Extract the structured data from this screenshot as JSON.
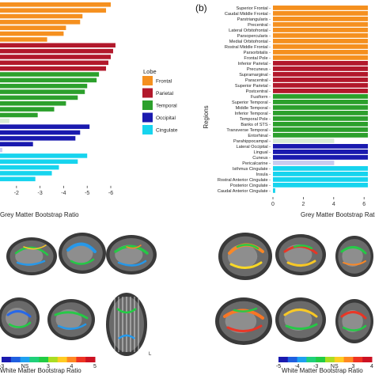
{
  "figure": {
    "panel_b_label": "(b)",
    "left_xaxis_title": "Grey Matter Bootstrap Ratio",
    "right_xaxis_title": "Grey Matter Bootstrap Ratio",
    "right_yaxis_title": "Regions",
    "bottom_left_colorbar_title": "White Matter Bootstrap Ratio",
    "bottom_right_colorbar_title": "White Matter Bootstrap Ratio",
    "orientation_label": "L",
    "bottom_left_colorbar_ticks": [
      "-3",
      "NS",
      "3",
      "4",
      "5"
    ],
    "bottom_right_colorbar_ticks": [
      "-5",
      "-4",
      "-3",
      "NS",
      "3",
      "4"
    ],
    "brain_image_description": "Brain MRI slices with colored overlays (not data-bearing)"
  },
  "colors": {
    "Frontal": "#f5901f",
    "Parietal": "#b2182b",
    "Temporal": "#2ca02c",
    "Occipital": "#1a1aaf",
    "Cingulate": "#17d4ee",
    "Non-significant": "#d9ecd6",
    "Non-significant-blue": "#c9ccf0"
  },
  "chart_data": [
    {
      "type": "bar",
      "panel": "a",
      "orientation": "horizontal",
      "xlabel": "Grey Matter Bootstrap Ratio",
      "xticks": [
        "-2",
        "-3",
        "-4",
        "-5",
        "-6"
      ],
      "xlim": [
        -1,
        -6.5
      ],
      "legend": {
        "title": "Lobe",
        "placement": "right",
        "entries": [
          "Frontal",
          "Parietal",
          "Temporal",
          "Occipital",
          "Cingulate"
        ]
      },
      "bars": [
        {
          "lobe": "Frontal",
          "value": -6.0
        },
        {
          "lobe": "Frontal",
          "value": -5.8
        },
        {
          "lobe": "Frontal",
          "value": -4.8
        },
        {
          "lobe": "Frontal",
          "value": -4.7
        },
        {
          "lobe": "Frontal",
          "value": -4.1
        },
        {
          "lobe": "Frontal",
          "value": -4.0
        },
        {
          "lobe": "Frontal",
          "value": -3.3
        },
        {
          "lobe": "Parietal",
          "value": -6.2
        },
        {
          "lobe": "Parietal",
          "value": -6.1
        },
        {
          "lobe": "Parietal",
          "value": -6.0
        },
        {
          "lobe": "Parietal",
          "value": -5.9
        },
        {
          "lobe": "Parietal",
          "value": -5.8
        },
        {
          "lobe": "Temporal",
          "value": -5.5
        },
        {
          "lobe": "Temporal",
          "value": -5.4
        },
        {
          "lobe": "Temporal",
          "value": -5.0
        },
        {
          "lobe": "Temporal",
          "value": -4.9
        },
        {
          "lobe": "Temporal",
          "value": -4.6
        },
        {
          "lobe": "Temporal",
          "value": -4.1
        },
        {
          "lobe": "Temporal",
          "value": -3.6
        },
        {
          "lobe": "Temporal",
          "value": -2.9
        },
        {
          "lobe": "Non-significant",
          "value": -1.7
        },
        {
          "lobe": "Occipital",
          "value": -5.1
        },
        {
          "lobe": "Occipital",
          "value": -4.7
        },
        {
          "lobe": "Occipital",
          "value": -4.5
        },
        {
          "lobe": "Occipital",
          "value": -2.7
        },
        {
          "lobe": "Non-significant-blue",
          "value": -1.4
        },
        {
          "lobe": "Cingulate",
          "value": -5.0
        },
        {
          "lobe": "Cingulate",
          "value": -4.6
        },
        {
          "lobe": "Cingulate",
          "value": -3.8
        },
        {
          "lobe": "Cingulate",
          "value": -3.5
        },
        {
          "lobe": "Cingulate",
          "value": -2.8
        }
      ]
    },
    {
      "type": "bar",
      "panel": "b",
      "orientation": "horizontal",
      "xlabel": "Grey Matter Bootstrap Ratio",
      "ylabel": "Regions",
      "xticks": [
        "0",
        "2",
        "4",
        "6"
      ],
      "xlim": [
        0,
        6.6
      ],
      "bars": [
        {
          "region": "Superior Frontal",
          "lobe": "Frontal",
          "value": 6.2
        },
        {
          "region": "Caudal Middle Frontal",
          "lobe": "Frontal",
          "value": 6.2
        },
        {
          "region": "Parstriangularis",
          "lobe": "Frontal",
          "value": 6.2
        },
        {
          "region": "Precentral",
          "lobe": "Frontal",
          "value": 6.2
        },
        {
          "region": "Lateral Orbitofrontal",
          "lobe": "Frontal",
          "value": 6.2
        },
        {
          "region": "Parsopercularis",
          "lobe": "Frontal",
          "value": 6.2
        },
        {
          "region": "Medial Orbitofrontal",
          "lobe": "Frontal",
          "value": 6.2
        },
        {
          "region": "Rostral Middle Frontal",
          "lobe": "Frontal",
          "value": 6.2
        },
        {
          "region": "Parsorbitalis",
          "lobe": "Frontal",
          "value": 6.2
        },
        {
          "region": "Frontal Pole",
          "lobe": "Frontal",
          "value": 6.2
        },
        {
          "region": "Inferior Parietal",
          "lobe": "Parietal",
          "value": 6.2
        },
        {
          "region": "Precuneus",
          "lobe": "Parietal",
          "value": 6.2
        },
        {
          "region": "Supramarginal",
          "lobe": "Parietal",
          "value": 6.2
        },
        {
          "region": "Paracentral",
          "lobe": "Parietal",
          "value": 6.2
        },
        {
          "region": "Superior Parietal",
          "lobe": "Parietal",
          "value": 6.2
        },
        {
          "region": "Postcentral",
          "lobe": "Parietal",
          "value": 6.2
        },
        {
          "region": "Fusiform",
          "lobe": "Temporal",
          "value": 6.2
        },
        {
          "region": "Superior Temporal",
          "lobe": "Temporal",
          "value": 6.2
        },
        {
          "region": "Middle Temporal",
          "lobe": "Temporal",
          "value": 6.2
        },
        {
          "region": "Inferior Temporal",
          "lobe": "Temporal",
          "value": 6.2
        },
        {
          "region": "Temporal Pole",
          "lobe": "Temporal",
          "value": 6.2
        },
        {
          "region": "Banks of STS",
          "lobe": "Temporal",
          "value": 6.2
        },
        {
          "region": "Transverse Temporal",
          "lobe": "Temporal",
          "value": 6.2
        },
        {
          "region": "Entorhinal",
          "lobe": "Temporal",
          "value": 6.2
        },
        {
          "region": "Parahippocampal",
          "lobe": "Non-significant",
          "value": 4.0
        },
        {
          "region": "Lateral Occipital",
          "lobe": "Occipital",
          "value": 6.2
        },
        {
          "region": "Lingual",
          "lobe": "Occipital",
          "value": 6.2
        },
        {
          "region": "Cuneus",
          "lobe": "Occipital",
          "value": 6.2
        },
        {
          "region": "Pericalcarine",
          "lobe": "Non-significant-blue",
          "value": 4.0
        },
        {
          "region": "Isthmus Cingulate",
          "lobe": "Cingulate",
          "value": 6.2
        },
        {
          "region": "Insula",
          "lobe": "Cingulate",
          "value": 6.2
        },
        {
          "region": "Rostral Anterior Cingulate",
          "lobe": "Cingulate",
          "value": 6.2
        },
        {
          "region": "Posterior Cingulate",
          "lobe": "Cingulate",
          "value": 6.2
        },
        {
          "region": "Caudal Anterior Cingulate",
          "lobe": "Cingulate",
          "value": 0.15
        }
      ]
    }
  ]
}
